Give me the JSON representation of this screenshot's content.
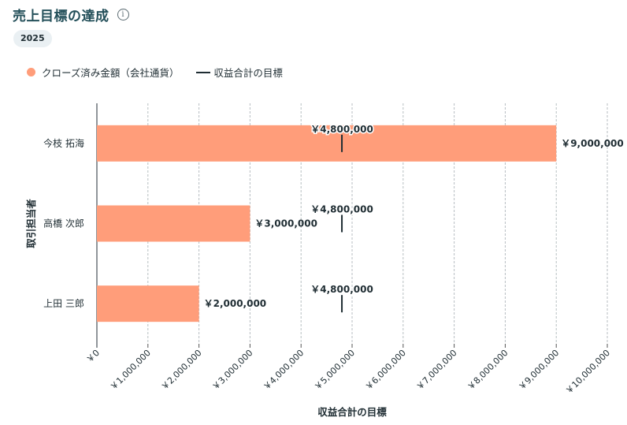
{
  "header": {
    "title": "売上目標の達成"
  },
  "filter": {
    "year": "2025"
  },
  "legend": {
    "bar_label": "クローズ済み金額（会社通貨）",
    "target_label": "収益合計の目標"
  },
  "colors": {
    "bar": "#ff9d7a",
    "target": "#1f2d33",
    "title": "#24505a"
  },
  "chart_data": {
    "type": "bar",
    "orientation": "horizontal",
    "categories": [
      "今枝 拓海",
      "高橋 次郎",
      "上田 三郎"
    ],
    "series": [
      {
        "name": "クローズ済み金額（会社通貨）",
        "values": [
          9000000,
          3000000,
          2000000
        ],
        "labels": [
          "￥9,000,000",
          "￥3,000,000",
          "￥2,000,000"
        ]
      },
      {
        "name": "収益合計の目標",
        "values": [
          4800000,
          4800000,
          4800000
        ],
        "labels": [
          "￥4,800,000",
          "￥4,800,000",
          "￥4,800,000"
        ]
      }
    ],
    "xlim": [
      0,
      10000000
    ],
    "xticks": [
      0,
      1000000,
      2000000,
      3000000,
      4000000,
      5000000,
      6000000,
      7000000,
      8000000,
      9000000,
      10000000
    ],
    "xtick_labels": [
      "￥0",
      "￥1,000,000",
      "￥2,000,000",
      "￥3,000,000",
      "￥4,000,000",
      "￥5,000,000",
      "￥6,000,000",
      "￥7,000,000",
      "￥8,000,000",
      "￥9,000,000",
      "￥10,000,000"
    ],
    "xlabel": "収益合計の目標",
    "ylabel": "取引担当者",
    "grid": true,
    "legend_position": "top-left"
  }
}
